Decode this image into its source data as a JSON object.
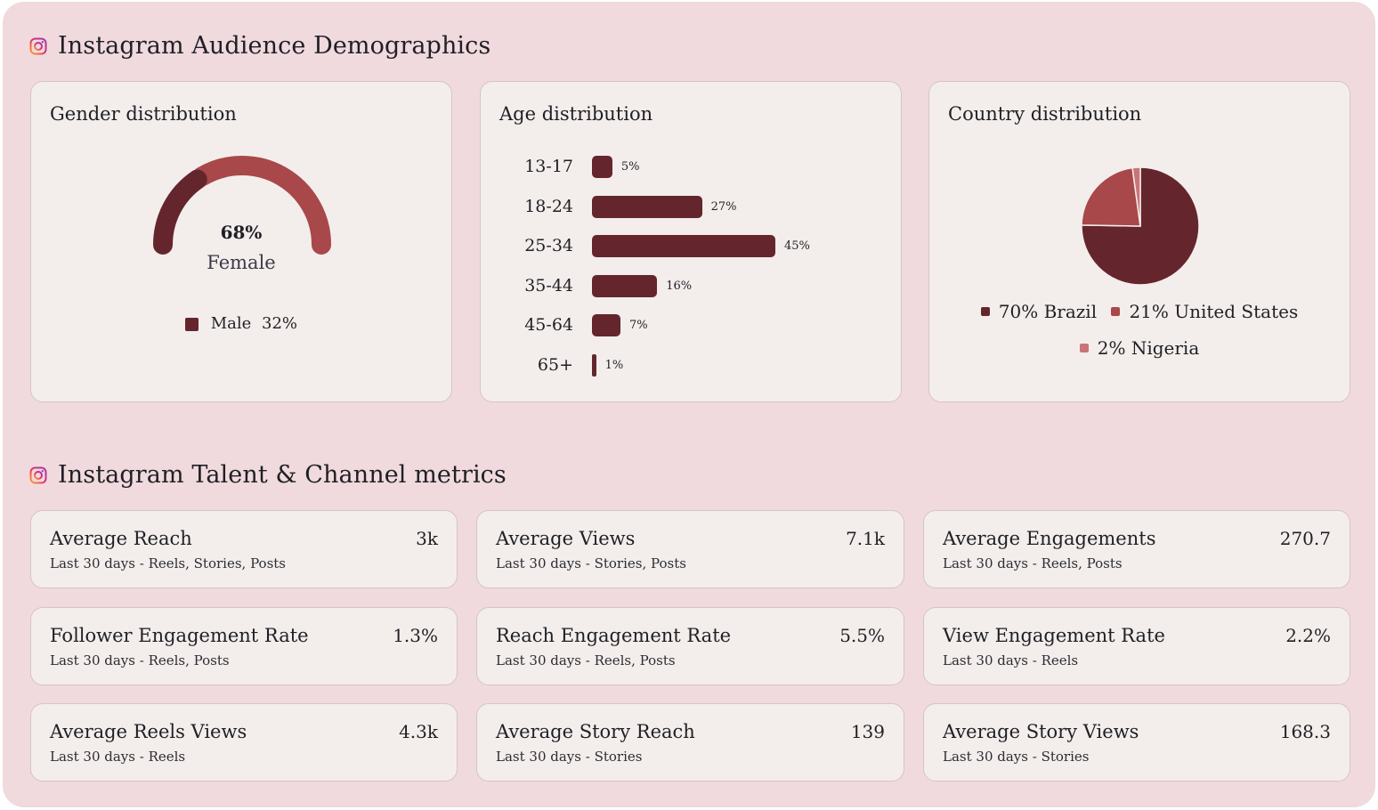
{
  "colors": {
    "background": "#f0dadd",
    "card": "#f3eeeb",
    "dark": "#64262c",
    "medium": "#a8484a",
    "light": "#c97478"
  },
  "demographics": {
    "title": "Instagram Audience Demographics",
    "icon": "instagram-icon"
  },
  "gender": {
    "title": "Gender distribution",
    "primary_percent": "68%",
    "primary_label": "Female",
    "secondary_label": "Male",
    "secondary_percent": "32%"
  },
  "age": {
    "title": "Age distribution"
  },
  "country": {
    "title": "Country distribution",
    "legend": [
      {
        "label": "70% Brazil",
        "color": "#64262c"
      },
      {
        "label": "21% United States",
        "color": "#a8484a"
      },
      {
        "label": "2% Nigeria",
        "color": "#c97478"
      }
    ]
  },
  "chart_data": [
    {
      "type": "pie",
      "subtype": "semi-donut-gauge",
      "title": "Gender distribution",
      "categories": [
        "Female",
        "Male"
      ],
      "values": [
        68,
        32
      ],
      "colors": [
        "#a8484a",
        "#64262c"
      ]
    },
    {
      "type": "bar",
      "orientation": "horizontal",
      "title": "Age distribution",
      "categories": [
        "13-17",
        "18-24",
        "25-34",
        "35-44",
        "45-64",
        "65+"
      ],
      "values": [
        5,
        27,
        45,
        16,
        7,
        1
      ],
      "value_labels": [
        "5%",
        "27%",
        "45%",
        "16%",
        "7%",
        "1%"
      ],
      "xlim": [
        0,
        45
      ]
    },
    {
      "type": "pie",
      "title": "Country distribution",
      "categories": [
        "Brazil",
        "United States",
        "Nigeria"
      ],
      "values": [
        70,
        21,
        2
      ],
      "colors": [
        "#64262c",
        "#a8484a",
        "#c97478"
      ]
    }
  ],
  "metrics": {
    "title": "Instagram Talent & Channel metrics",
    "icon": "instagram-icon",
    "items": [
      {
        "name": "Average Reach",
        "value": "3k",
        "sub": "Last 30 days - Reels, Stories, Posts"
      },
      {
        "name": "Average Views",
        "value": "7.1k",
        "sub": "Last 30 days - Stories, Posts"
      },
      {
        "name": "Average Engagements",
        "value": "270.7",
        "sub": "Last 30 days - Reels, Posts"
      },
      {
        "name": "Follower Engagement Rate",
        "value": "1.3%",
        "sub": "Last 30 days - Reels, Posts"
      },
      {
        "name": "Reach Engagement Rate",
        "value": "5.5%",
        "sub": "Last 30 days - Reels, Posts"
      },
      {
        "name": "View Engagement Rate",
        "value": "2.2%",
        "sub": "Last 30 days - Reels"
      },
      {
        "name": "Average Reels Views",
        "value": "4.3k",
        "sub": "Last 30 days - Reels"
      },
      {
        "name": "Average Story Reach",
        "value": "139",
        "sub": "Last 30 days - Stories"
      },
      {
        "name": "Average Story Views",
        "value": "168.3",
        "sub": "Last 30 days - Stories"
      }
    ]
  }
}
